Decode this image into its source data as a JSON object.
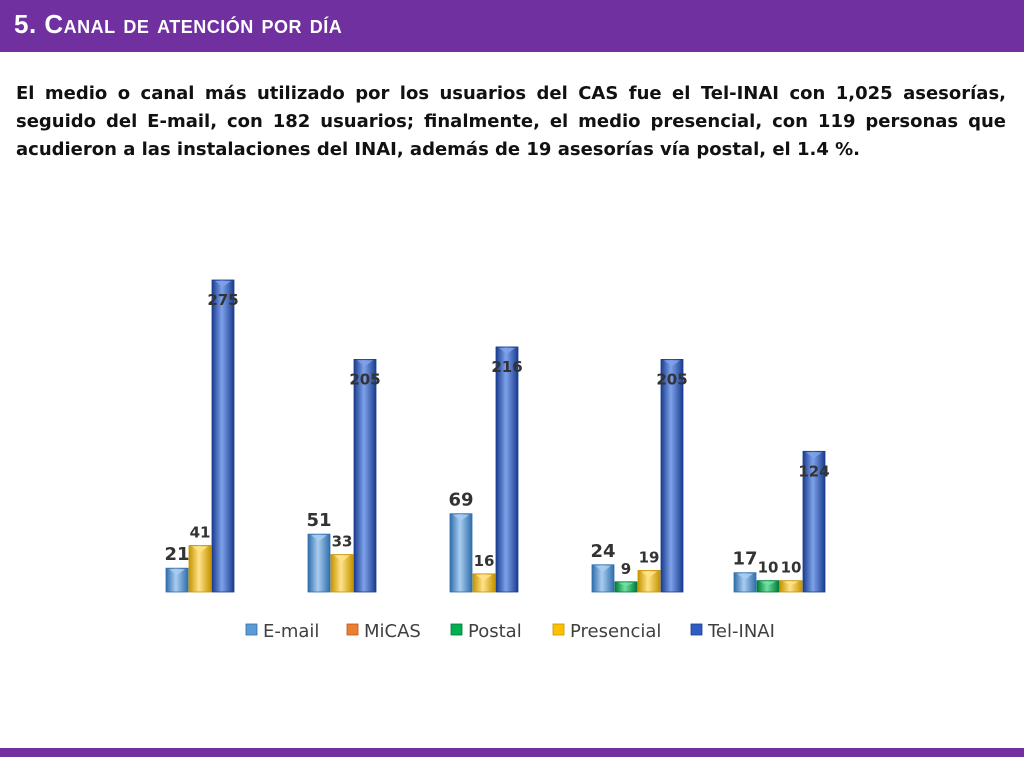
{
  "slide": {
    "title": "5. Canal de atención por día",
    "paragraph": "El medio o canal más utilizado por los usuarios del CAS fue el Tel-INAI con 1,025 asesorías, seguido del E-mail, con 182 usuarios; finalmente, el medio presencial, con 119 personas que acudieron a las instalaciones del INAI, además de 19 asesorías vía postal, el 1.4 %."
  },
  "colors": {
    "title_bar": "#7030a0",
    "E-mail": "#5b9bd5",
    "MiCAS": "#ed7d31",
    "Postal": "#00b050",
    "Presencial": "#ffc000",
    "Tel-INAI": "#2e5cc2"
  },
  "chart_data": {
    "type": "bar",
    "categories": [
      "",
      "",
      "",
      "",
      ""
    ],
    "ylim": [
      0,
      300
    ],
    "legend_position": "bottom",
    "grid": false,
    "series": [
      {
        "name": "E-mail",
        "values": [
          21,
          51,
          69,
          24,
          17
        ]
      },
      {
        "name": "MiCAS",
        "values": [
          null,
          null,
          null,
          null,
          null
        ]
      },
      {
        "name": "Postal",
        "values": [
          null,
          null,
          null,
          9,
          10
        ]
      },
      {
        "name": "Presencial",
        "values": [
          41,
          33,
          16,
          19,
          10
        ]
      },
      {
        "name": "Tel-INAI",
        "values": [
          275,
          205,
          216,
          205,
          124
        ]
      }
    ]
  }
}
